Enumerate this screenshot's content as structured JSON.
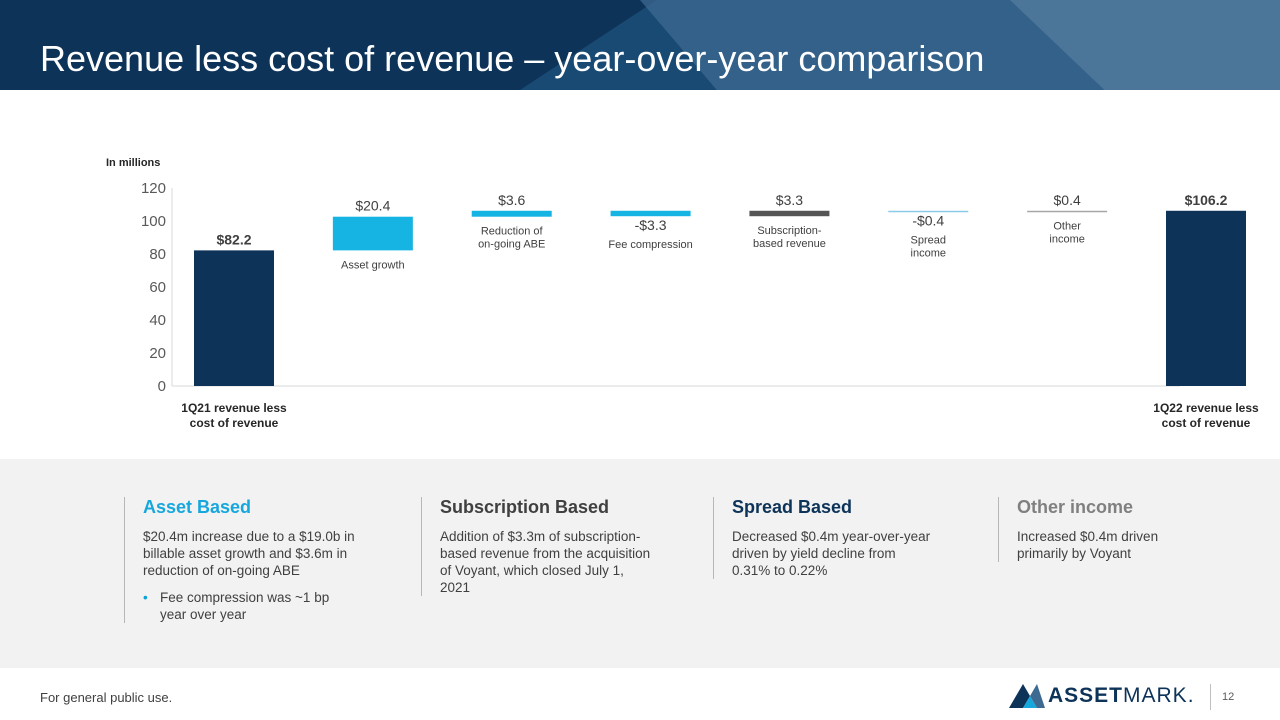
{
  "title": "Revenue less cost of revenue – year-over-year comparison",
  "chart_data": {
    "type": "bar",
    "subtype": "waterfall",
    "unit_label": "In millions",
    "ylim": [
      0,
      120
    ],
    "yticks": [
      "0",
      "20",
      "40",
      "60",
      "80",
      "100",
      "120"
    ],
    "bars": [
      {
        "label": "1Q21 revenue less cost of revenue",
        "value": 82.2,
        "value_label": "$82.2",
        "kind": "total",
        "color": "#0d3358"
      },
      {
        "label": "Asset growth",
        "value": 20.4,
        "value_label": "$20.4",
        "kind": "delta",
        "color": "#16b4e3"
      },
      {
        "label": "Reduction of on-going ABE",
        "value": 3.6,
        "value_label": "$3.6",
        "kind": "delta",
        "color": "#16b4e3"
      },
      {
        "label": "Fee compression",
        "value": -3.3,
        "value_label": "-$3.3",
        "kind": "delta",
        "color": "#16b4e3"
      },
      {
        "label": "Subscription-based revenue",
        "value": 3.3,
        "value_label": "$3.3",
        "kind": "delta",
        "color": "#555555"
      },
      {
        "label": "Spread income",
        "value": -0.4,
        "value_label": "-$0.4",
        "kind": "delta",
        "color": "#8ccbe6"
      },
      {
        "label": "Other income",
        "value": 0.4,
        "value_label": "$0.4",
        "kind": "delta",
        "color": "#a6a6a6"
      },
      {
        "label": "1Q22 revenue less cost of revenue",
        "value": 106.2,
        "value_label": "$106.2",
        "kind": "total",
        "color": "#0d3358"
      }
    ]
  },
  "notes": [
    {
      "heading": "Asset Based",
      "color": "#16a7dd",
      "text": "$20.4m increase due to a $19.0b in billable asset growth and $3.6m in reduction of on-going ABE",
      "bullet": "Fee compression was ~1 bp year over year"
    },
    {
      "heading": "Subscription Based",
      "color": "#404040",
      "text": "Addition of $3.3m of subscription-based revenue from the acquisition of Voyant, which closed July 1, 2021"
    },
    {
      "heading": "Spread Based",
      "color": "#0d3358",
      "text": "Decreased $0.4m year-over-year driven by yield decline from 0.31% to 0.22%"
    },
    {
      "heading": "Other income",
      "color": "#808080",
      "text": "Increased $0.4m driven primarily by Voyant"
    }
  ],
  "footer": {
    "note": "For general public use.",
    "logo_bold": "ASSET",
    "logo_regular": "MARK",
    "logo_suffix": ".",
    "page_number": "12"
  }
}
